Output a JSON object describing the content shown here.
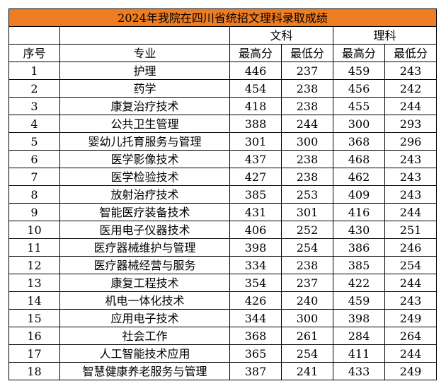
{
  "title": "2024年我院在四川省统招文理科录取成绩",
  "header": {
    "group_wen": "文科",
    "group_li": "理科",
    "col_index": "序号",
    "col_major": "专业",
    "wen_max": "最高分",
    "wen_min": "最低分",
    "li_max": "最高分",
    "li_min": "最低分"
  },
  "rows": [
    {
      "index": "1",
      "major": "护理",
      "wen_max": "446",
      "wen_min": "237",
      "li_max": "459",
      "li_min": "243"
    },
    {
      "index": "2",
      "major": "药学",
      "wen_max": "454",
      "wen_min": "238",
      "li_max": "456",
      "li_min": "242"
    },
    {
      "index": "3",
      "major": "康复治疗技术",
      "wen_max": "418",
      "wen_min": "238",
      "li_max": "455",
      "li_min": "244"
    },
    {
      "index": "4",
      "major": "公共卫生管理",
      "wen_max": "388",
      "wen_min": "244",
      "li_max": "300",
      "li_min": "293"
    },
    {
      "index": "5",
      "major": "婴幼儿托育服务与管理",
      "wen_max": "301",
      "wen_min": "300",
      "li_max": "368",
      "li_min": "296"
    },
    {
      "index": "6",
      "major": "医学影像技术",
      "wen_max": "437",
      "wen_min": "238",
      "li_max": "468",
      "li_min": "243"
    },
    {
      "index": "7",
      "major": "医学检验技术",
      "wen_max": "427",
      "wen_min": "238",
      "li_max": "462",
      "li_min": "243"
    },
    {
      "index": "8",
      "major": "放射治疗技术",
      "wen_max": "385",
      "wen_min": "253",
      "li_max": "409",
      "li_min": "243"
    },
    {
      "index": "9",
      "major": "智能医疗装备技术",
      "wen_max": "431",
      "wen_min": "301",
      "li_max": "416",
      "li_min": "244"
    },
    {
      "index": "10",
      "major": "医用电子仪器技术",
      "wen_max": "406",
      "wen_min": "252",
      "li_max": "430",
      "li_min": "251"
    },
    {
      "index": "11",
      "major": "医疗器械维护与管理",
      "wen_max": "398",
      "wen_min": "254",
      "li_max": "386",
      "li_min": "246"
    },
    {
      "index": "12",
      "major": "医疗器械经营与服务",
      "wen_max": "334",
      "wen_min": "238",
      "li_max": "385",
      "li_min": "254"
    },
    {
      "index": "13",
      "major": "康复工程技术",
      "wen_max": "354",
      "wen_min": "237",
      "li_max": "422",
      "li_min": "244"
    },
    {
      "index": "14",
      "major": "机电一体化技术",
      "wen_max": "426",
      "wen_min": "240",
      "li_max": "459",
      "li_min": "243"
    },
    {
      "index": "15",
      "major": "应用电子技术",
      "wen_max": "344",
      "wen_min": "300",
      "li_max": "398",
      "li_min": "249"
    },
    {
      "index": "16",
      "major": "社会工作",
      "wen_max": "368",
      "wen_min": "261",
      "li_max": "284",
      "li_min": "264"
    },
    {
      "index": "17",
      "major": "人工智能技术应用",
      "wen_max": "365",
      "wen_min": "254",
      "li_max": "411",
      "li_min": "244"
    },
    {
      "index": "18",
      "major": "智慧健康养老服务与管理",
      "wen_max": "387",
      "wen_min": "241",
      "li_max": "433",
      "li_min": "249"
    }
  ],
  "colors": {
    "title_background": "#ef7d22"
  }
}
